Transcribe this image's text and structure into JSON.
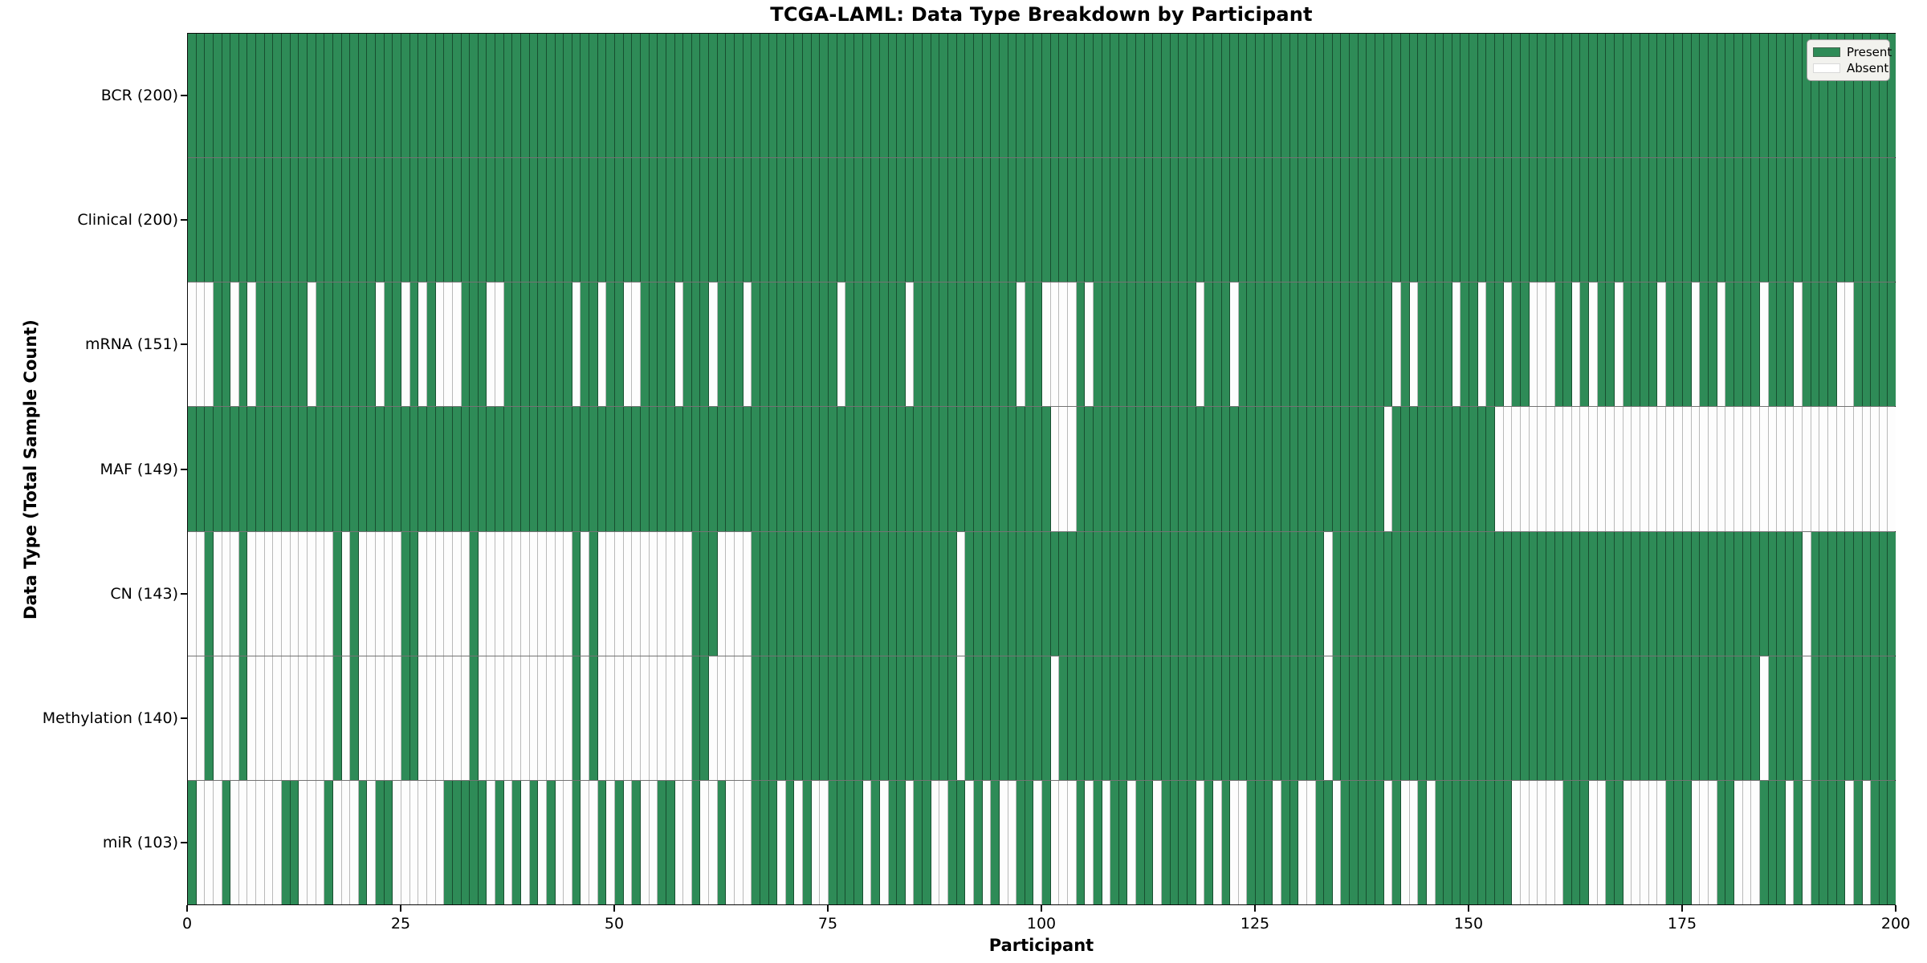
{
  "chart_data": {
    "type": "heatmap",
    "title": "TCGA-LAML: Data Type Breakdown by Participant",
    "xlabel": "Participant",
    "ylabel": "Data Type (Total Sample Count)",
    "x_ticks": [
      0,
      25,
      50,
      75,
      100,
      125,
      150,
      175,
      200
    ],
    "n_participants": 200,
    "xlim": [
      0,
      200
    ],
    "grid": "cell-borders",
    "legend_position": "upper-right-inside",
    "legend": {
      "present": "Present",
      "absent": "Absent"
    },
    "colors": {
      "present": "#2E8B57",
      "absent": "#FDFDFD",
      "background": "#FFFFFF"
    },
    "value_encoding": "1 = data type present for participant (green), 0 = absent (white)",
    "rows": [
      {
        "label": "BCR",
        "total": 200,
        "absent": []
      },
      {
        "label": "Clinical",
        "total": 200,
        "absent": []
      },
      {
        "label": "mRNA",
        "total": 151,
        "absent": [
          0,
          1,
          2,
          5,
          7,
          14,
          22,
          25,
          27,
          29,
          30,
          31,
          35,
          36,
          45,
          48,
          51,
          52,
          57,
          61,
          65,
          76,
          84,
          97,
          100,
          101,
          102,
          103,
          105,
          118,
          122,
          141,
          143,
          148,
          151,
          154,
          157,
          158,
          159,
          162,
          164,
          167,
          172,
          176,
          179,
          184,
          188,
          193,
          194
        ]
      },
      {
        "label": "MAF",
        "total": 149,
        "absent": [
          101,
          102,
          103,
          140,
          153,
          154,
          155,
          156,
          157,
          158,
          159,
          160,
          161,
          162,
          163,
          164,
          165,
          166,
          167,
          168,
          169,
          170,
          171,
          172,
          173,
          174,
          175,
          176,
          177,
          178,
          179,
          180,
          181,
          182,
          183,
          184,
          185,
          186,
          187,
          188,
          189,
          190,
          191,
          192,
          193,
          194,
          195,
          196,
          197,
          198,
          199
        ]
      },
      {
        "label": "CN",
        "total": 143,
        "absent": [
          0,
          1,
          3,
          4,
          5,
          7,
          8,
          9,
          10,
          11,
          12,
          13,
          14,
          15,
          16,
          18,
          20,
          21,
          22,
          23,
          24,
          27,
          28,
          29,
          30,
          31,
          32,
          34,
          35,
          36,
          37,
          38,
          39,
          40,
          41,
          42,
          43,
          44,
          46,
          48,
          49,
          50,
          51,
          52,
          53,
          54,
          55,
          56,
          57,
          58,
          62,
          63,
          64,
          65,
          90,
          133,
          189
        ]
      },
      {
        "label": "Methylation",
        "total": 140,
        "absent": [
          0,
          1,
          3,
          4,
          5,
          7,
          8,
          9,
          10,
          11,
          12,
          13,
          14,
          15,
          16,
          18,
          20,
          21,
          22,
          23,
          24,
          27,
          28,
          29,
          30,
          31,
          32,
          34,
          35,
          36,
          37,
          38,
          39,
          40,
          41,
          42,
          43,
          44,
          46,
          48,
          49,
          50,
          51,
          52,
          53,
          54,
          55,
          56,
          57,
          58,
          61,
          62,
          63,
          64,
          65,
          90,
          101,
          133,
          184,
          189
        ]
      },
      {
        "label": "miR",
        "total": 103,
        "absent": [
          1,
          2,
          3,
          5,
          6,
          7,
          8,
          9,
          10,
          13,
          14,
          15,
          17,
          18,
          19,
          21,
          24,
          25,
          26,
          27,
          28,
          29,
          35,
          37,
          39,
          41,
          43,
          44,
          46,
          47,
          49,
          51,
          53,
          54,
          57,
          58,
          60,
          61,
          63,
          64,
          65,
          69,
          71,
          73,
          74,
          79,
          81,
          84,
          87,
          88,
          91,
          93,
          95,
          96,
          99,
          101,
          102,
          103,
          105,
          107,
          110,
          113,
          118,
          120,
          122,
          123,
          127,
          130,
          131,
          134,
          140,
          142,
          143,
          145,
          155,
          156,
          157,
          158,
          159,
          160,
          164,
          165,
          168,
          169,
          170,
          171,
          172,
          176,
          177,
          178,
          181,
          182,
          183,
          187,
          189,
          194,
          196
        ]
      }
    ]
  }
}
